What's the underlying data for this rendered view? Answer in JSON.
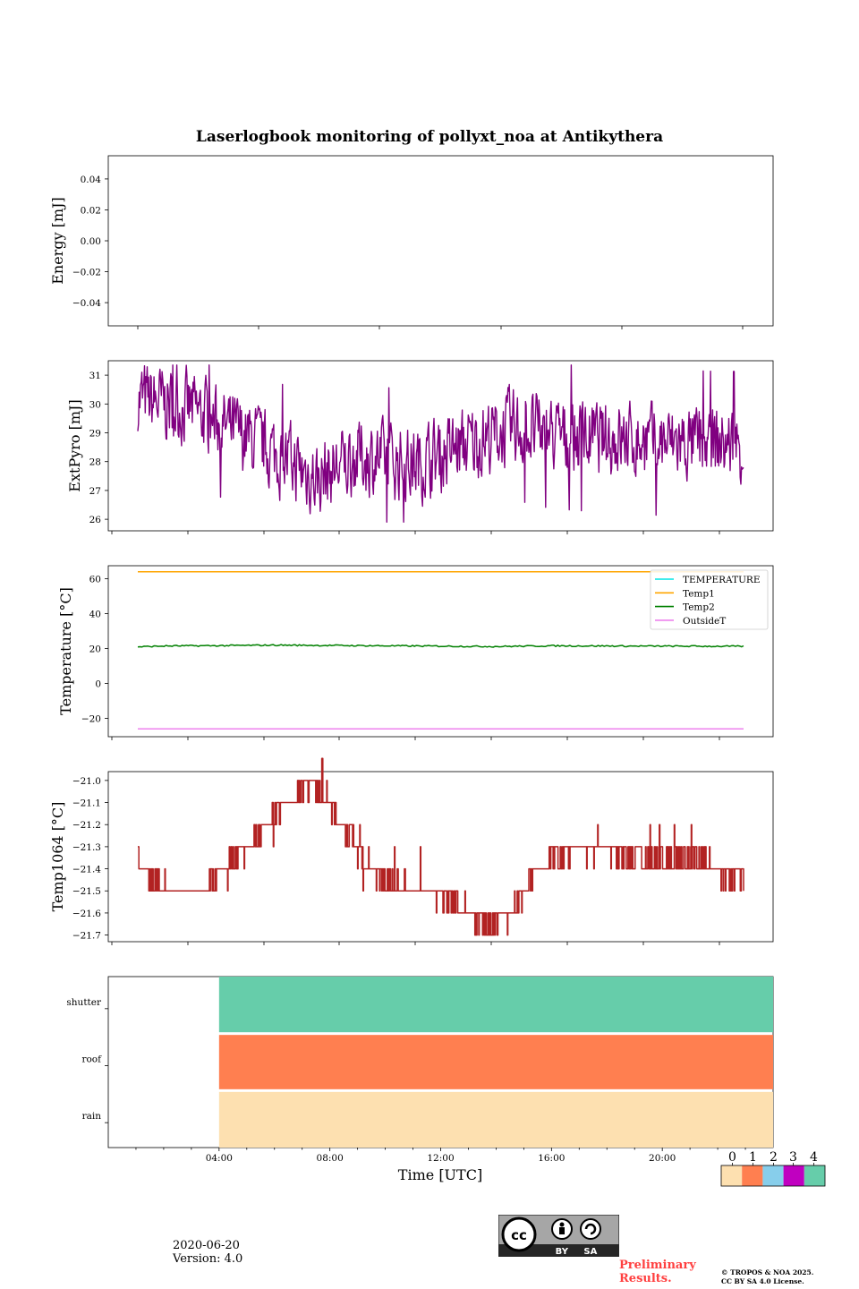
{
  "chart_data": {
    "title": "Laserlogbook monitoring of pollyxt_noa at Antikythera",
    "xlabel": "Time [UTC]",
    "time_range_hours": [
      0,
      24
    ],
    "x_ticks": [
      {
        "hour": 4,
        "label": "04:00"
      },
      {
        "hour": 8,
        "label": "08:00"
      },
      {
        "hour": 12,
        "label": "12:00"
      },
      {
        "hour": 16,
        "label": "16:00"
      },
      {
        "hour": 20,
        "label": "20:00"
      }
    ],
    "panels": [
      {
        "id": "energy",
        "type": "line",
        "ylabel": "Energy [mJ]",
        "ylim": [
          -0.055,
          0.055
        ],
        "ytick_values": [
          -0.04,
          -0.02,
          0.0,
          0.02,
          0.04
        ],
        "ytick_labels": [
          "−0.04",
          "−0.02",
          "0.00",
          "0.02",
          "0.04"
        ],
        "series": []
      },
      {
        "id": "extpyro",
        "type": "line",
        "ylabel": "ExtPyro [mJ]",
        "ylim": [
          25.6,
          31.5
        ],
        "ytick_values": [
          26,
          27,
          28,
          29,
          30,
          31
        ],
        "ytick_labels": [
          "26",
          "27",
          "28",
          "29",
          "30",
          "31"
        ],
        "series": [
          {
            "name": "ExtPyro",
            "color": "#800080",
            "kind": "noisy",
            "mean": 28.5,
            "amp": 1.1,
            "points": [
              [
                1.0,
                30.2
              ],
              [
                3.0,
                29.8
              ],
              [
                6.0,
                28.3
              ],
              [
                7.5,
                27.4
              ],
              [
                9.0,
                28.2
              ],
              [
                11.0,
                27.9
              ],
              [
                13.0,
                28.6
              ],
              [
                14.7,
                29.2
              ],
              [
                16.0,
                28.9
              ],
              [
                19.0,
                28.7
              ],
              [
                22.0,
                28.6
              ],
              [
                23.0,
                28.6
              ]
            ]
          }
        ]
      },
      {
        "id": "temperature",
        "type": "line",
        "ylabel": "Temperature [°C]",
        "ylim": [
          -30.5,
          67.5
        ],
        "ytick_values": [
          -20,
          0,
          20,
          40,
          60
        ],
        "ytick_labels": [
          "−20",
          "0",
          "20",
          "40",
          "60"
        ],
        "legend": "top-right",
        "series": [
          {
            "name": "TEMPERATURE",
            "color": "#00e5e5",
            "kind": "none",
            "points": []
          },
          {
            "name": "Temp1",
            "color": "#ffa500",
            "kind": "line",
            "points": [
              [
                1.0,
                64.0
              ],
              [
                23.0,
                64.0
              ]
            ]
          },
          {
            "name": "Temp2",
            "color": "#008000",
            "kind": "wiggle",
            "points": [
              [
                1.0,
                21.0
              ],
              [
                2.0,
                21.5
              ],
              [
                4.0,
                21.7
              ],
              [
                6.0,
                22.0
              ],
              [
                8.0,
                21.8
              ],
              [
                10.0,
                21.6
              ],
              [
                12.0,
                21.4
              ],
              [
                14.0,
                21.2
              ],
              [
                16.0,
                21.6
              ],
              [
                18.0,
                21.5
              ],
              [
                20.0,
                21.4
              ],
              [
                23.0,
                21.3
              ]
            ]
          },
          {
            "name": "OutsideT",
            "color": "#ee82ee",
            "kind": "line",
            "points": [
              [
                1.0,
                -26.0
              ],
              [
                23.0,
                -26.0
              ]
            ]
          }
        ]
      },
      {
        "id": "temp1064",
        "type": "line",
        "ylabel": "Temp1064 [°C]",
        "ylim": [
          -21.73,
          -20.96
        ],
        "ytick_values": [
          -21.7,
          -21.6,
          -21.5,
          -21.4,
          -21.3,
          -21.2,
          -21.1,
          -21.0
        ],
        "ytick_labels": [
          "−21.7",
          "−21.6",
          "−21.5",
          "−21.4",
          "−21.3",
          "−21.2",
          "−21.1",
          "−21.0"
        ],
        "series": [
          {
            "name": "Temp1064",
            "color": "#b22222",
            "kind": "quantized",
            "step": 0.1,
            "points": [
              [
                1.0,
                -21.35
              ],
              [
                1.5,
                -21.45
              ],
              [
                2.5,
                -21.5
              ],
              [
                3.5,
                -21.5
              ],
              [
                4.0,
                -21.4
              ],
              [
                5.0,
                -21.3
              ],
              [
                6.0,
                -21.15
              ],
              [
                6.5,
                -21.08
              ],
              [
                7.0,
                -21.02
              ],
              [
                7.5,
                -21.02
              ],
              [
                8.0,
                -21.12
              ],
              [
                8.5,
                -21.22
              ],
              [
                9.0,
                -21.32
              ],
              [
                9.5,
                -21.42
              ],
              [
                10.5,
                -21.48
              ],
              [
                12.0,
                -21.5
              ],
              [
                12.5,
                -21.55
              ],
              [
                13.0,
                -21.6
              ],
              [
                13.7,
                -21.66
              ],
              [
                14.5,
                -21.6
              ],
              [
                15.0,
                -21.5
              ],
              [
                15.5,
                -21.4
              ],
              [
                16.0,
                -21.35
              ],
              [
                17.0,
                -21.3
              ],
              [
                18.0,
                -21.3
              ],
              [
                19.0,
                -21.35
              ],
              [
                20.0,
                -21.35
              ],
              [
                21.0,
                -21.35
              ],
              [
                22.0,
                -21.4
              ],
              [
                23.0,
                -21.45
              ]
            ]
          }
        ]
      },
      {
        "id": "status",
        "type": "heatmap",
        "ylabel": "",
        "rows": [
          "shutter",
          "roof",
          "rain"
        ],
        "start_hour": 4.0,
        "end_hour": 24.0,
        "row_values": [
          4,
          1,
          0
        ]
      }
    ],
    "colorbar": {
      "ticks": [
        "0",
        "1",
        "2",
        "3",
        "4"
      ],
      "colors": [
        "#fde0b0",
        "#ff7f50",
        "#87ceeb",
        "#c000c0",
        "#66cdaa"
      ]
    }
  },
  "footer": {
    "date": "2020-06-20",
    "version": "Version: 4.0",
    "preliminary_line1": "Preliminary",
    "preliminary_line2": "Results.",
    "copyright_line1": "© TROPOS & NOA 2025.",
    "copyright_line2": "CC BY SA 4.0 License.",
    "license_badge": "BY SA"
  },
  "colors": {
    "prelim_red": "#ff4040",
    "badge_bg": "#a6a6a6",
    "badge_dark": "#262626"
  }
}
